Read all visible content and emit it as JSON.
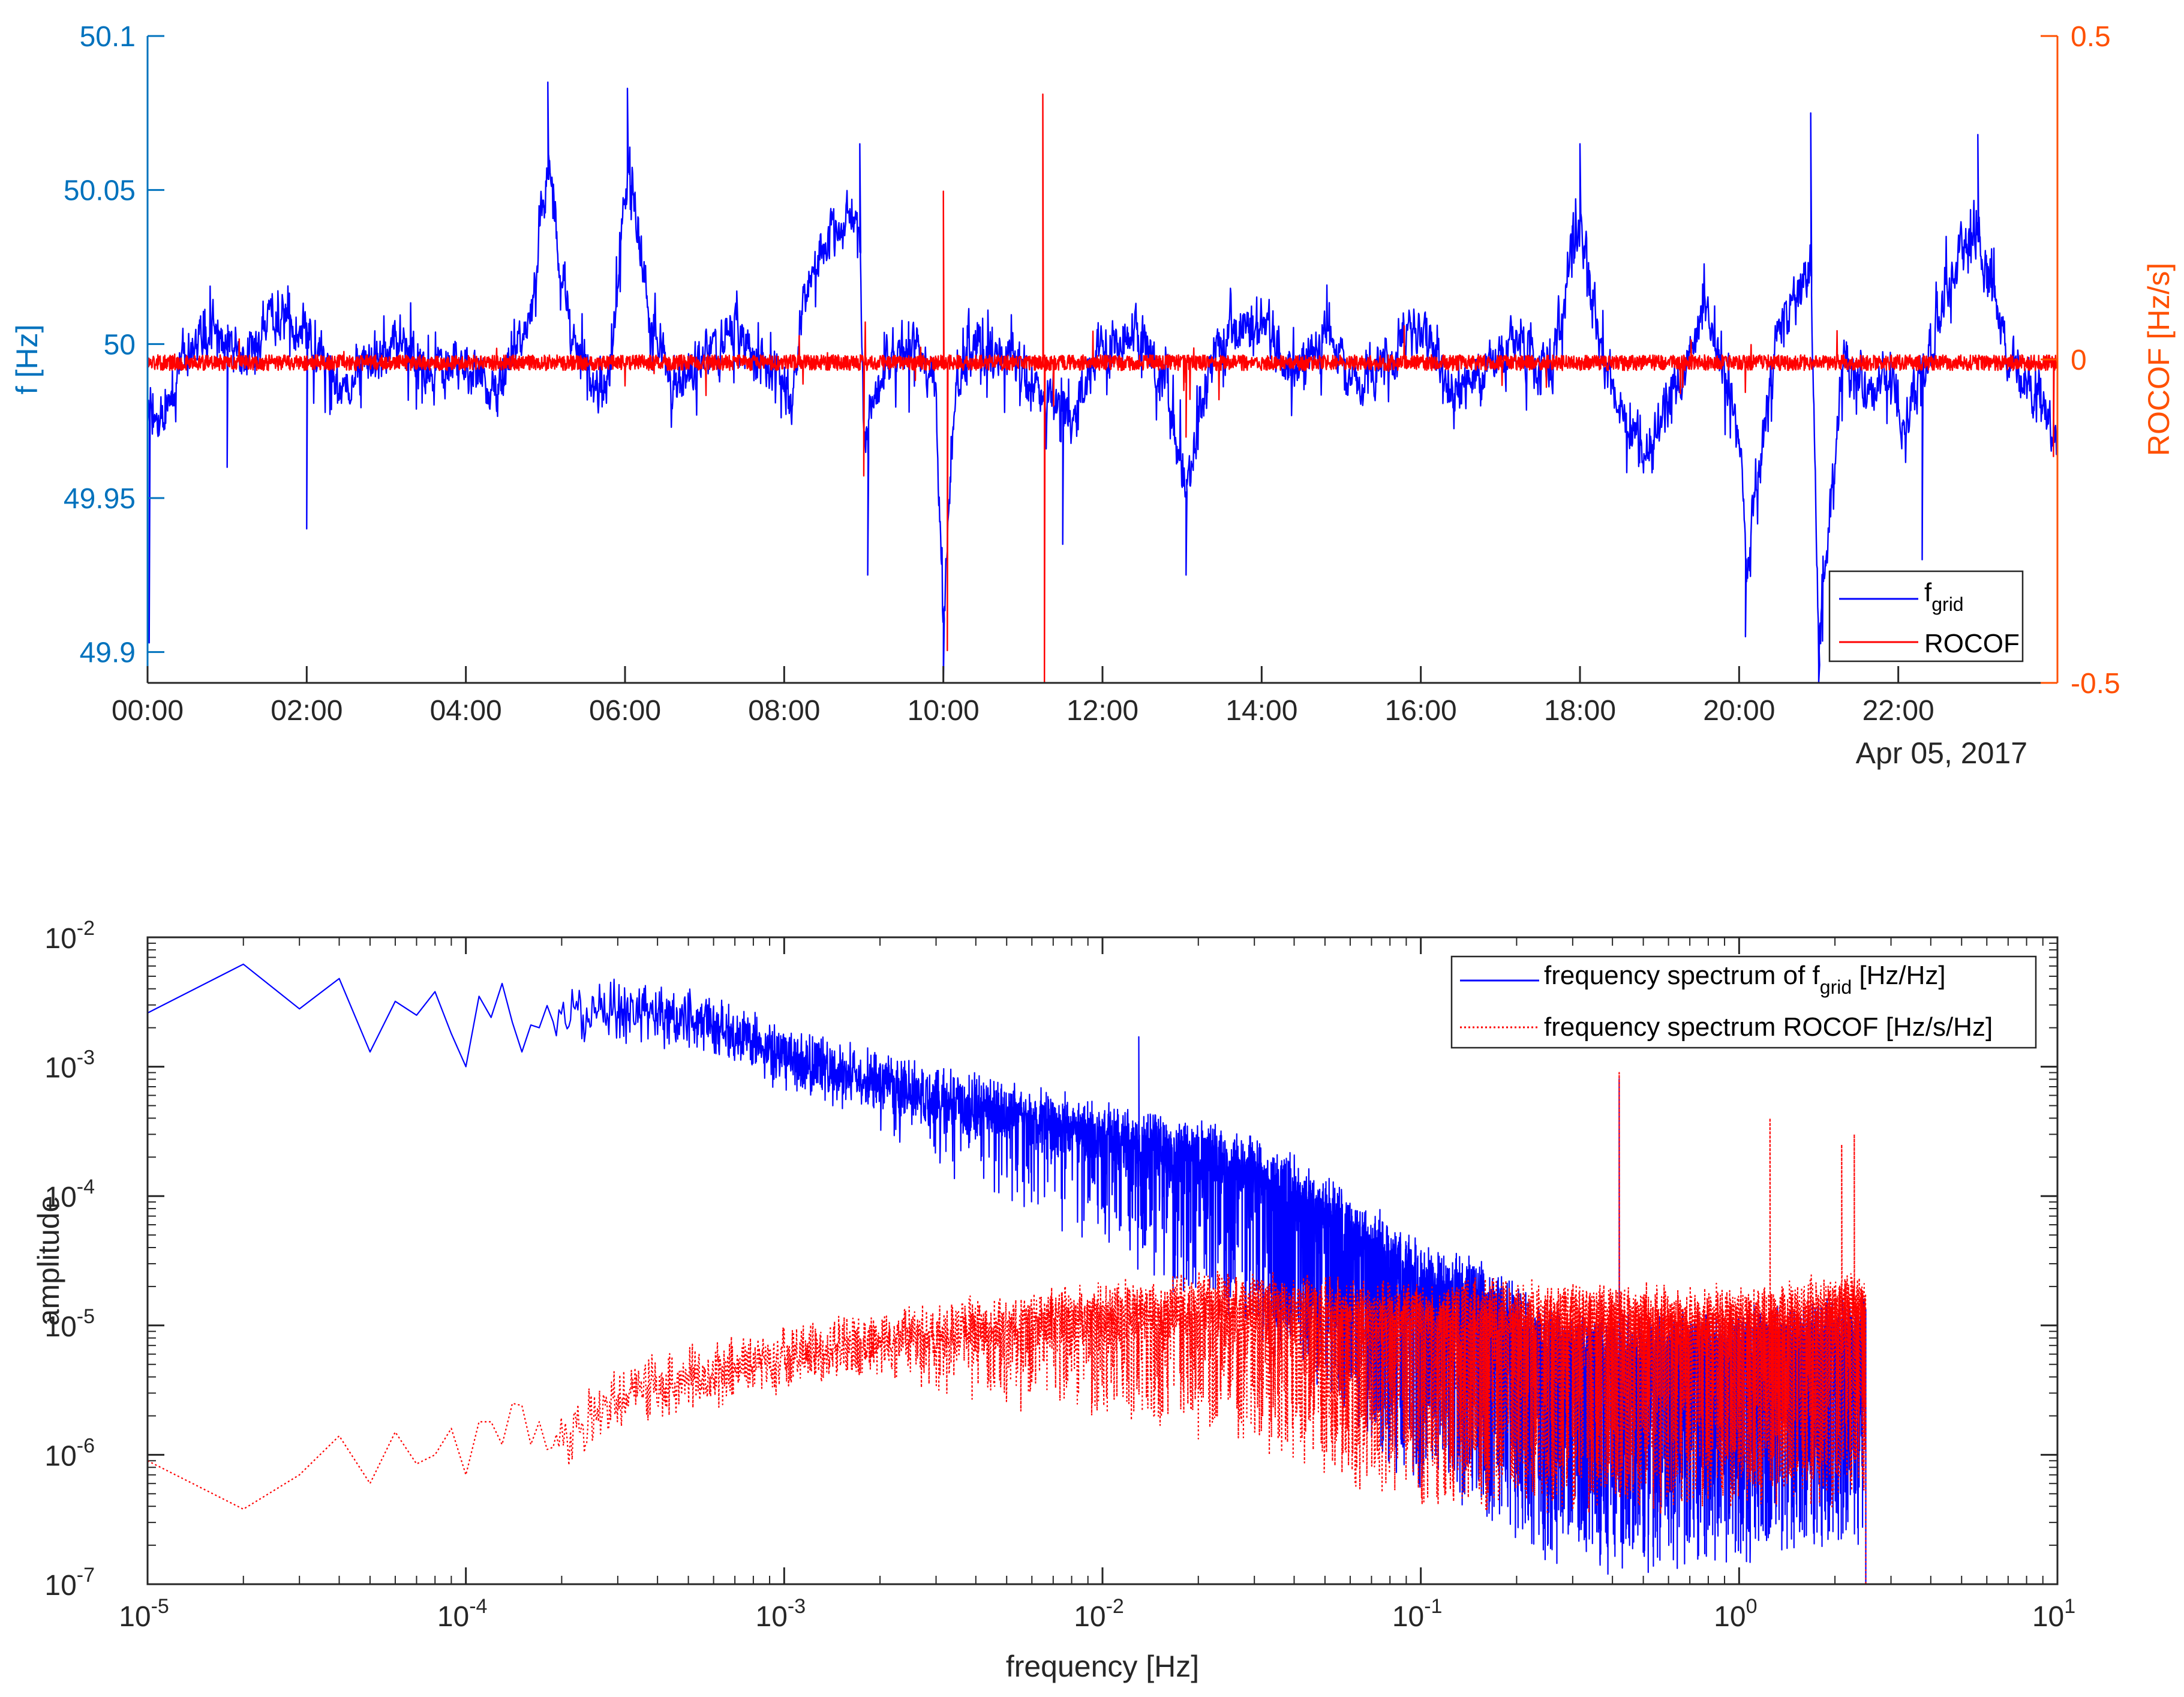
{
  "colors": {
    "freq_axis": "#0072BD",
    "rocof_axis": "#FF5000",
    "blue_trace": "#0000FF",
    "red_trace": "#FF0000",
    "axis": "#262626",
    "background": "#FFFFFF"
  },
  "chart_data": [
    {
      "type": "line",
      "id": "time-series",
      "title": "",
      "xlabel": "",
      "x_date_label": "Apr 05, 2017",
      "x_ticks": [
        "00:00",
        "02:00",
        "04:00",
        "06:00",
        "08:00",
        "10:00",
        "12:00",
        "14:00",
        "16:00",
        "18:00",
        "20:00",
        "22:00"
      ],
      "x_range_hours": [
        0,
        24
      ],
      "y_left": {
        "label": "f [Hz]",
        "ylim": [
          49.89,
          50.1
        ],
        "ticks": [
          {
            "value": 49.9,
            "label": "49.9"
          },
          {
            "value": 49.95,
            "label": "49.95"
          },
          {
            "value": 50.0,
            "label": "50"
          },
          {
            "value": 50.05,
            "label": "50.05"
          },
          {
            "value": 50.1,
            "label": "50.1"
          }
        ]
      },
      "y_right": {
        "label": "ROCOF [Hz/s]",
        "ylim": [
          -0.5,
          0.5
        ],
        "ticks": [
          {
            "value": -0.5,
            "label": "-0.5"
          },
          {
            "value": 0,
            "label": "0"
          },
          {
            "value": 0.5,
            "label": "0.5"
          }
        ]
      },
      "legend": {
        "position": "bottom-right",
        "entries": [
          {
            "label": "f",
            "subscript": "grid"
          },
          {
            "label": "ROCOF"
          }
        ]
      },
      "series": [
        {
          "name": "f_grid",
          "axis": "left",
          "baseline": 49.997,
          "noise_amplitude": 0.012,
          "envelope": [
            [
              0.0,
              49.982
            ],
            [
              0.15,
              49.97
            ],
            [
              0.4,
              49.995
            ],
            [
              0.8,
              50.005
            ],
            [
              1.2,
              49.995
            ],
            [
              1.6,
              50.01
            ],
            [
              2.0,
              50.005
            ],
            [
              2.4,
              49.985
            ],
            [
              2.8,
              49.995
            ],
            [
              3.2,
              50.0
            ],
            [
              3.6,
              49.99
            ],
            [
              4.0,
              49.995
            ],
            [
              4.4,
              49.985
            ],
            [
              4.8,
              50.01
            ],
            [
              5.05,
              50.06
            ],
            [
              5.3,
              50.005
            ],
            [
              5.6,
              49.985
            ],
            [
              5.8,
              49.99
            ],
            [
              6.05,
              50.06
            ],
            [
              6.3,
              50.01
            ],
            [
              6.6,
              49.985
            ],
            [
              7.0,
              49.995
            ],
            [
              7.4,
              50.005
            ],
            [
              7.8,
              49.99
            ],
            [
              8.1,
              49.985
            ],
            [
              8.3,
              50.02
            ],
            [
              8.6,
              50.035
            ],
            [
              8.95,
              50.04
            ],
            [
              9.0,
              49.97
            ],
            [
              9.3,
              49.995
            ],
            [
              9.6,
              50.0
            ],
            [
              9.9,
              49.99
            ],
            [
              10.0,
              49.91
            ],
            [
              10.15,
              49.985
            ],
            [
              10.4,
              50.0
            ],
            [
              10.8,
              49.995
            ],
            [
              11.2,
              49.985
            ],
            [
              11.6,
              49.975
            ],
            [
              11.9,
              49.995
            ],
            [
              12.4,
              50.005
            ],
            [
              12.8,
              49.99
            ],
            [
              13.05,
              49.95
            ],
            [
              13.3,
              49.99
            ],
            [
              13.6,
              50.005
            ],
            [
              14.0,
              50.005
            ],
            [
              14.4,
              49.99
            ],
            [
              14.8,
              50.005
            ],
            [
              15.2,
              49.985
            ],
            [
              15.6,
              49.995
            ],
            [
              16.0,
              50.005
            ],
            [
              16.4,
              49.985
            ],
            [
              16.8,
              49.99
            ],
            [
              17.2,
              50.0
            ],
            [
              17.6,
              49.99
            ],
            [
              18.0,
              50.04
            ],
            [
              18.3,
              49.99
            ],
            [
              18.8,
              49.965
            ],
            [
              19.2,
              49.985
            ],
            [
              19.6,
              50.01
            ],
            [
              20.0,
              49.97
            ],
            [
              20.1,
              49.93
            ],
            [
              20.5,
              50.005
            ],
            [
              20.9,
              50.025
            ],
            [
              21.0,
              49.9
            ],
            [
              21.3,
              49.995
            ],
            [
              21.6,
              49.985
            ],
            [
              21.9,
              49.99
            ],
            [
              22.05,
              49.975
            ],
            [
              22.4,
              50.0
            ],
            [
              22.7,
              50.025
            ],
            [
              23.0,
              50.035
            ],
            [
              23.4,
              49.995
            ],
            [
              23.8,
              49.985
            ],
            [
              23.98,
              49.97
            ]
          ],
          "spikes": [
            [
              0.02,
              49.903
            ],
            [
              1.0,
              49.96
            ],
            [
              2.0,
              49.94
            ],
            [
              5.03,
              50.085
            ],
            [
              6.03,
              50.083
            ],
            [
              8.95,
              50.065
            ],
            [
              9.05,
              49.925
            ],
            [
              10.0,
              49.89
            ],
            [
              11.5,
              49.935
            ],
            [
              13.05,
              49.925
            ],
            [
              18.0,
              50.065
            ],
            [
              20.08,
              49.905
            ],
            [
              20.9,
              50.075
            ],
            [
              21.0,
              49.89
            ],
            [
              22.3,
              49.93
            ],
            [
              23.0,
              50.068
            ]
          ]
        },
        {
          "name": "ROCOF",
          "axis": "right",
          "baseline": -0.005,
          "noise_amplitude": 0.012,
          "spikes": [
            [
              9.0,
              -0.18
            ],
            [
              10.0,
              0.26
            ],
            [
              10.05,
              -0.45
            ],
            [
              11.25,
              0.41
            ],
            [
              11.27,
              -0.5
            ],
            [
              13.05,
              -0.12
            ],
            [
              23.95,
              -0.15
            ]
          ]
        }
      ]
    },
    {
      "type": "line",
      "id": "spectrum",
      "title": "",
      "xlabel": "frequency [Hz]",
      "ylabel": "amplitude",
      "x_scale": "log",
      "y_scale": "log",
      "xlim": [
        1e-05,
        10
      ],
      "ylim": [
        1e-07,
        0.01
      ],
      "x_ticks": [
        {
          "value": 1e-05,
          "base": "10",
          "exp": "-5"
        },
        {
          "value": 0.0001,
          "base": "10",
          "exp": "-4"
        },
        {
          "value": 0.001,
          "base": "10",
          "exp": "-3"
        },
        {
          "value": 0.01,
          "base": "10",
          "exp": "-2"
        },
        {
          "value": 0.1,
          "base": "10",
          "exp": "-1"
        },
        {
          "value": 1,
          "base": "10",
          "exp": "0"
        },
        {
          "value": 10,
          "base": "10",
          "exp": "1"
        }
      ],
      "y_ticks": [
        {
          "value": 1e-07,
          "base": "10",
          "exp": "-7"
        },
        {
          "value": 1e-06,
          "base": "10",
          "exp": "-6"
        },
        {
          "value": 1e-05,
          "base": "10",
          "exp": "-5"
        },
        {
          "value": 0.0001,
          "base": "10",
          "exp": "-4"
        },
        {
          "value": 0.001,
          "base": "10",
          "exp": "-3"
        },
        {
          "value": 0.01,
          "base": "10",
          "exp": "-2"
        }
      ],
      "legend": {
        "position": "top-right",
        "entries": [
          {
            "label": "frequency spectrum of f",
            "subscript": "grid",
            "suffix": " [Hz/Hz]"
          },
          {
            "label": "frequency spectrum ROCOF [Hz/s/Hz]"
          }
        ]
      },
      "series": [
        {
          "name": "frequency spectrum of f_grid",
          "style": "solid",
          "f_max": 2.5,
          "low_freq_points": [
            [
              1e-05,
              0.0026
            ],
            [
              2e-05,
              0.0062
            ],
            [
              3e-05,
              0.0028
            ],
            [
              4e-05,
              0.0048
            ],
            [
              5e-05,
              0.0013
            ],
            [
              6e-05,
              0.0032
            ],
            [
              7e-05,
              0.0025
            ],
            [
              8e-05,
              0.0038
            ],
            [
              9e-05,
              0.0018
            ],
            [
              0.0001,
              0.001
            ],
            [
              0.00011,
              0.0035
            ],
            [
              0.00012,
              0.0024
            ],
            [
              0.00013,
              0.0044
            ],
            [
              0.00014,
              0.0022
            ],
            [
              0.00015,
              0.0013
            ],
            [
              0.00016,
              0.0021
            ],
            [
              0.00017,
              0.002
            ]
          ],
          "envelope": [
            [
              0.00018,
              0.0025
            ],
            [
              0.0003,
              0.003
            ],
            [
              0.0005,
              0.0025
            ],
            [
              0.001,
              0.0013
            ],
            [
              0.003,
              0.0006
            ],
            [
              0.01,
              0.00032
            ],
            [
              0.02,
              0.00024
            ],
            [
              0.04,
              0.00012
            ],
            [
              0.07,
              5e-05
            ],
            [
              0.1,
              2.6e-05
            ],
            [
              0.15,
              2e-05
            ],
            [
              0.25,
              8e-06
            ],
            [
              0.5,
              7e-06
            ],
            [
              1.0,
              8e-06
            ],
            [
              2.5,
              1e-05
            ]
          ],
          "spikes": [
            [
              0.013,
              0.0017
            ],
            [
              0.42,
              0.0008
            ]
          ]
        },
        {
          "name": "frequency spectrum ROCOF",
          "style": "dotted",
          "f_max": 2.5,
          "low_freq_points": [
            [
              1e-05,
              9e-07
            ],
            [
              2e-05,
              3.8e-07
            ],
            [
              3e-05,
              7e-07
            ],
            [
              4e-05,
              1.4e-06
            ],
            [
              5e-05,
              6e-07
            ],
            [
              6e-05,
              1.5e-06
            ],
            [
              7e-05,
              8.5e-07
            ],
            [
              8e-05,
              1e-06
            ],
            [
              9e-05,
              1.6e-06
            ],
            [
              0.0001,
              7e-07
            ],
            [
              0.00011,
              1.8e-06
            ],
            [
              0.00012,
              1.8e-06
            ],
            [
              0.00013,
              1.2e-06
            ],
            [
              0.00014,
              2.5e-06
            ],
            [
              0.00015,
              2.4e-06
            ],
            [
              0.00016,
              1.2e-06
            ],
            [
              0.00017,
              1.8e-06
            ]
          ],
          "envelope": [
            [
              0.00018,
              1.2e-06
            ],
            [
              0.0003,
              3e-06
            ],
            [
              0.001,
              6e-06
            ],
            [
              0.003,
              9e-06
            ],
            [
              0.01,
              1.3e-05
            ],
            [
              0.03,
              1.6e-05
            ],
            [
              0.08,
              1.3e-05
            ],
            [
              0.15,
              1.4e-05
            ],
            [
              0.3,
              1.3e-05
            ],
            [
              1.0,
              1.2e-05
            ],
            [
              2.5,
              1.6e-05
            ]
          ],
          "spikes": [
            [
              0.42,
              0.0009
            ],
            [
              1.25,
              0.0004
            ],
            [
              2.1,
              0.00025
            ],
            [
              2.3,
              0.0003
            ]
          ]
        }
      ]
    }
  ]
}
